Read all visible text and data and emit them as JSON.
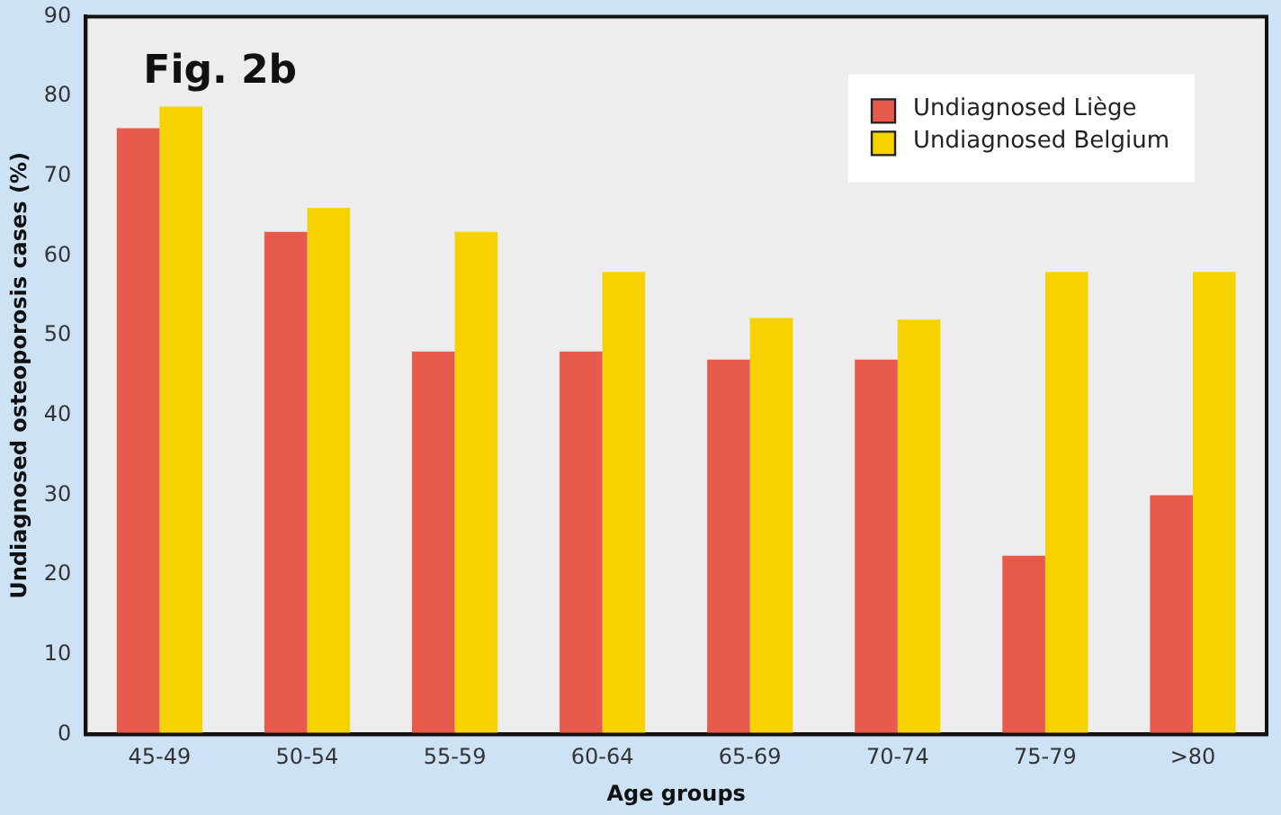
{
  "chart_data": {
    "type": "bar",
    "xlabel": "Age groups",
    "ylabel": "Undiagnosed osteoporosis cases (%)",
    "annotations": [
      "Fig. 2b"
    ],
    "categories": [
      "45-49",
      "50-54",
      "55-59",
      "60-64",
      "65-69",
      "70-74",
      "75-79",
      ">80"
    ],
    "series": [
      {
        "name": "Undiagnosed Liège",
        "color": "#e85b4c",
        "values": [
          76,
          63,
          48,
          48,
          47,
          47,
          22.4,
          30
        ]
      },
      {
        "name": "Undiagnosed Belgium",
        "color": "#f5d200",
        "values": [
          78.7,
          66,
          63,
          58,
          52.2,
          52,
          58,
          58
        ]
      }
    ],
    "ylim": [
      0,
      90
    ],
    "yticks": [
      0,
      10,
      20,
      30,
      40,
      50,
      60,
      70,
      80,
      90
    ],
    "grid": false,
    "legend": "top right"
  }
}
